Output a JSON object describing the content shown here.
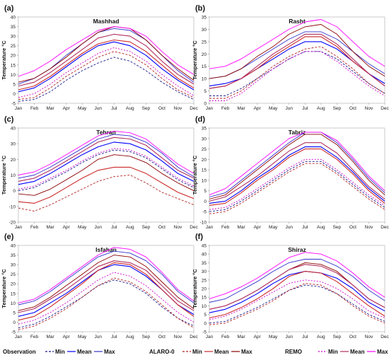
{
  "months": [
    "Jan",
    "Feb",
    "Mar",
    "Apr",
    "May",
    "Jun",
    "Jul",
    "Aug",
    "Sep",
    "Oct",
    "Nov",
    "Dec"
  ],
  "ylabel": "Temperature °C",
  "colors": {
    "obs_min": "#1a1a8c",
    "obs_mean": "#0000ff",
    "obs_max": "#3333cc",
    "alaro_min": "#b22222",
    "alaro_mean": "#cc2a2a",
    "alaro_max": "#8b0000",
    "remo_min": "#cc00cc",
    "remo_mean": "#b03060",
    "remo_max": "#ff00ff"
  },
  "legend": {
    "observation": "Observation",
    "alaro": "ALARO-0",
    "remo": "REMO",
    "min": "Min",
    "mean": "Mean",
    "max": "Max"
  },
  "chart_data": [
    {
      "type": "line",
      "panel": "(a)",
      "title": "Mashhad",
      "ylim": [
        -5,
        40
      ],
      "yticks": [
        -5,
        0,
        5,
        10,
        15,
        20,
        25,
        30,
        35,
        40
      ],
      "series": [
        {
          "key": "obs_min",
          "values": [
            -4,
            -3,
            1,
            7,
            12,
            16,
            19,
            17,
            12,
            6,
            1,
            -3
          ]
        },
        {
          "key": "obs_mean",
          "values": [
            1,
            3,
            8,
            14,
            20,
            25,
            27,
            25,
            20,
            13,
            7,
            2
          ]
        },
        {
          "key": "obs_max",
          "values": [
            5,
            8,
            13,
            20,
            26,
            32,
            34,
            33,
            28,
            20,
            12,
            6
          ]
        },
        {
          "key": "alaro_min",
          "values": [
            -3,
            -2,
            3,
            9,
            14,
            19,
            22,
            20,
            15,
            8,
            2,
            -2
          ]
        },
        {
          "key": "alaro_mean",
          "values": [
            2,
            4,
            9,
            15,
            21,
            26,
            28,
            27,
            22,
            15,
            8,
            3
          ]
        },
        {
          "key": "alaro_max",
          "values": [
            6,
            8,
            13,
            19,
            26,
            32,
            35,
            34,
            28,
            20,
            13,
            7
          ]
        },
        {
          "key": "remo_min",
          "values": [
            -2,
            0,
            5,
            11,
            16,
            21,
            24,
            22,
            17,
            10,
            4,
            -1
          ]
        },
        {
          "key": "remo_mean",
          "values": [
            4,
            6,
            11,
            17,
            23,
            29,
            31,
            30,
            25,
            17,
            10,
            5
          ]
        },
        {
          "key": "remo_max",
          "values": [
            9,
            12,
            17,
            23,
            28,
            33,
            35,
            34,
            30,
            22,
            15,
            10
          ]
        }
      ]
    },
    {
      "type": "line",
      "panel": "(b)",
      "title": "Rasht",
      "ylim": [
        0,
        35
      ],
      "yticks": [
        0,
        5,
        10,
        15,
        20,
        25,
        30,
        35
      ],
      "series": [
        {
          "key": "obs_min",
          "values": [
            3,
            3,
            6,
            10,
            14,
            18,
            21,
            21,
            18,
            13,
            8,
            4
          ]
        },
        {
          "key": "obs_mean",
          "values": [
            7,
            8,
            10,
            14,
            18,
            22,
            25,
            25,
            22,
            17,
            12,
            8
          ]
        },
        {
          "key": "obs_max",
          "values": [
            10,
            11,
            14,
            18,
            22,
            26,
            29,
            29,
            26,
            21,
            16,
            12
          ]
        },
        {
          "key": "alaro_min",
          "values": [
            2,
            2,
            5,
            10,
            15,
            19,
            22,
            23,
            19,
            14,
            8,
            4
          ]
        },
        {
          "key": "alaro_mean",
          "values": [
            6,
            7,
            10,
            14,
            19,
            23,
            27,
            27,
            23,
            17,
            12,
            7
          ]
        },
        {
          "key": "alaro_max",
          "values": [
            10,
            11,
            14,
            19,
            23,
            28,
            31,
            32,
            28,
            21,
            15,
            11
          ]
        },
        {
          "key": "remo_min",
          "values": [
            1,
            1,
            4,
            9,
            14,
            18,
            21,
            21,
            17,
            12,
            7,
            3
          ]
        },
        {
          "key": "remo_mean",
          "values": [
            6,
            7,
            10,
            15,
            20,
            24,
            28,
            28,
            24,
            18,
            12,
            7
          ]
        },
        {
          "key": "remo_max",
          "values": [
            14,
            15,
            18,
            22,
            26,
            30,
            33,
            34,
            31,
            25,
            19,
            15
          ]
        }
      ]
    },
    {
      "type": "line",
      "panel": "(c)",
      "title": "Tehran",
      "ylim": [
        -20,
        40
      ],
      "yticks": [
        -20,
        -10,
        0,
        10,
        20,
        30,
        40
      ],
      "series": [
        {
          "key": "obs_min",
          "values": [
            0,
            2,
            7,
            12,
            18,
            23,
            26,
            25,
            21,
            14,
            7,
            2
          ]
        },
        {
          "key": "obs_mean",
          "values": [
            4,
            6,
            11,
            17,
            23,
            28,
            31,
            30,
            26,
            19,
            11,
            6
          ]
        },
        {
          "key": "obs_max",
          "values": [
            8,
            10,
            15,
            21,
            27,
            33,
            36,
            35,
            31,
            24,
            15,
            9
          ]
        },
        {
          "key": "alaro_min",
          "values": [
            -11,
            -13,
            -9,
            -4,
            1,
            6,
            9,
            10,
            5,
            -1,
            -5,
            -9
          ]
        },
        {
          "key": "alaro_mean",
          "values": [
            -7,
            -8,
            -4,
            2,
            8,
            13,
            15,
            15,
            11,
            5,
            -1,
            -5
          ]
        },
        {
          "key": "alaro_max",
          "values": [
            -2,
            -3,
            1,
            7,
            13,
            20,
            23,
            22,
            18,
            11,
            5,
            0
          ]
        },
        {
          "key": "remo_min",
          "values": [
            1,
            3,
            8,
            13,
            19,
            24,
            27,
            26,
            22,
            15,
            8,
            3
          ]
        },
        {
          "key": "remo_mean",
          "values": [
            6,
            8,
            13,
            19,
            25,
            31,
            34,
            33,
            29,
            21,
            13,
            8
          ]
        },
        {
          "key": "remo_max",
          "values": [
            10,
            12,
            17,
            23,
            29,
            35,
            38,
            37,
            33,
            25,
            17,
            11
          ]
        }
      ]
    },
    {
      "type": "line",
      "panel": "(d)",
      "title": "Tabriz",
      "ylim": [
        -10,
        35
      ],
      "yticks": [
        -10,
        -5,
        0,
        5,
        10,
        15,
        20,
        25,
        30,
        35
      ],
      "series": [
        {
          "key": "obs_min",
          "values": [
            -5,
            -4,
            0,
            5,
            10,
            15,
            19,
            19,
            14,
            8,
            2,
            -3
          ]
        },
        {
          "key": "obs_mean",
          "values": [
            -1,
            0,
            5,
            11,
            16,
            22,
            26,
            26,
            21,
            14,
            6,
            0
          ]
        },
        {
          "key": "obs_max",
          "values": [
            2,
            4,
            10,
            16,
            22,
            28,
            33,
            33,
            28,
            20,
            11,
            4
          ]
        },
        {
          "key": "alaro_min",
          "values": [
            -6,
            -5,
            -1,
            4,
            9,
            14,
            18,
            18,
            13,
            7,
            1,
            -4
          ]
        },
        {
          "key": "alaro_mean",
          "values": [
            -2,
            -1,
            4,
            10,
            15,
            21,
            25,
            25,
            20,
            13,
            5,
            -1
          ]
        },
        {
          "key": "alaro_max",
          "values": [
            1,
            3,
            9,
            15,
            21,
            27,
            32,
            32,
            27,
            19,
            10,
            3
          ]
        },
        {
          "key": "remo_min",
          "values": [
            -4,
            -3,
            1,
            6,
            11,
            16,
            20,
            20,
            15,
            9,
            3,
            -2
          ]
        },
        {
          "key": "remo_mean",
          "values": [
            0,
            2,
            7,
            12,
            18,
            24,
            28,
            28,
            23,
            15,
            7,
            1
          ]
        },
        {
          "key": "remo_max",
          "values": [
            3,
            6,
            12,
            18,
            24,
            30,
            33,
            33,
            29,
            21,
            12,
            5
          ]
        }
      ]
    },
    {
      "type": "line",
      "panel": "(e)",
      "title": "Isfahan",
      "ylim": [
        -5,
        40
      ],
      "yticks": [
        -5,
        0,
        5,
        10,
        15,
        20,
        25,
        30,
        35,
        40
      ],
      "series": [
        {
          "key": "obs_min",
          "values": [
            -3,
            -1,
            3,
            8,
            13,
            19,
            22,
            20,
            15,
            8,
            2,
            -2
          ]
        },
        {
          "key": "obs_mean",
          "values": [
            3,
            5,
            10,
            15,
            21,
            27,
            30,
            29,
            24,
            17,
            9,
            4
          ]
        },
        {
          "key": "obs_max",
          "values": [
            9,
            11,
            16,
            22,
            28,
            34,
            37,
            36,
            32,
            25,
            16,
            10
          ]
        },
        {
          "key": "alaro_min",
          "values": [
            -4,
            -2,
            2,
            7,
            13,
            19,
            23,
            21,
            16,
            9,
            2,
            -3
          ]
        },
        {
          "key": "alaro_mean",
          "values": [
            1,
            3,
            8,
            14,
            20,
            27,
            31,
            30,
            25,
            17,
            9,
            3
          ]
        },
        {
          "key": "alaro_max",
          "values": [
            6,
            8,
            13,
            19,
            25,
            31,
            35,
            34,
            29,
            21,
            13,
            7
          ]
        },
        {
          "key": "remo_min",
          "values": [
            -1,
            1,
            5,
            10,
            16,
            22,
            26,
            24,
            19,
            12,
            5,
            0
          ]
        },
        {
          "key": "remo_mean",
          "values": [
            5,
            7,
            12,
            17,
            23,
            29,
            32,
            31,
            27,
            19,
            11,
            6
          ]
        },
        {
          "key": "remo_max",
          "values": [
            10,
            12,
            17,
            23,
            29,
            35,
            39,
            38,
            34,
            26,
            17,
            11
          ]
        }
      ]
    },
    {
      "type": "line",
      "panel": "(f)",
      "title": "Shiraz",
      "ylim": [
        -5,
        45
      ],
      "yticks": [
        -5,
        0,
        5,
        10,
        15,
        20,
        25,
        30,
        35,
        40,
        45
      ],
      "series": [
        {
          "key": "obs_min",
          "values": [
            0,
            1,
            5,
            9,
            14,
            19,
            22,
            21,
            17,
            11,
            5,
            1
          ]
        },
        {
          "key": "obs_mean",
          "values": [
            6,
            8,
            12,
            17,
            23,
            28,
            30,
            29,
            26,
            20,
            12,
            7
          ]
        },
        {
          "key": "obs_max",
          "values": [
            12,
            14,
            19,
            24,
            30,
            35,
            37,
            37,
            33,
            27,
            19,
            13
          ]
        },
        {
          "key": "alaro_min",
          "values": [
            -1,
            0,
            4,
            8,
            13,
            19,
            23,
            22,
            17,
            10,
            4,
            0
          ]
        },
        {
          "key": "alaro_mean",
          "values": [
            3,
            5,
            9,
            14,
            20,
            27,
            30,
            29,
            24,
            17,
            10,
            4
          ]
        },
        {
          "key": "alaro_max",
          "values": [
            8,
            10,
            14,
            19,
            25,
            31,
            35,
            34,
            30,
            22,
            14,
            9
          ]
        },
        {
          "key": "remo_min",
          "values": [
            2,
            4,
            8,
            13,
            18,
            23,
            25,
            24,
            20,
            14,
            7,
            3
          ]
        },
        {
          "key": "remo_mean",
          "values": [
            8,
            10,
            14,
            19,
            25,
            31,
            34,
            33,
            29,
            22,
            14,
            9
          ]
        },
        {
          "key": "remo_max",
          "values": [
            14,
            17,
            21,
            26,
            32,
            38,
            41,
            40,
            36,
            29,
            21,
            15
          ]
        }
      ]
    }
  ]
}
